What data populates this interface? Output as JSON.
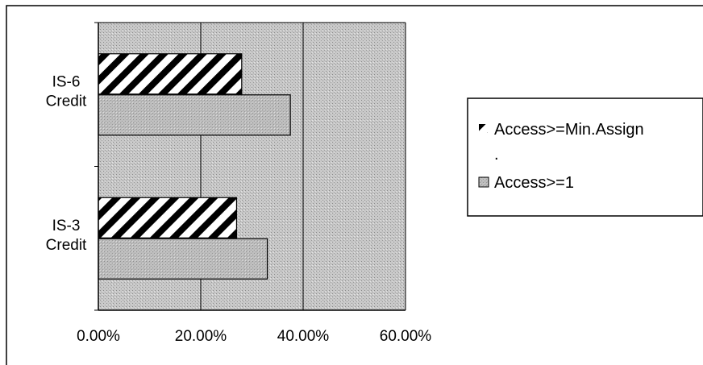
{
  "chart_data": {
    "type": "bar",
    "orientation": "horizontal",
    "categories": [
      [
        "IS-3",
        "Credit"
      ],
      [
        "IS-6",
        "Credit"
      ]
    ],
    "series": [
      {
        "name": "Access>=1",
        "values": [
          0.33,
          0.375
        ],
        "pattern": "stipple",
        "color": "#b8b8b8"
      },
      {
        "name": "Access>=Min.Assign",
        "values": [
          0.27,
          0.28
        ],
        "pattern": "diagonal-hatch",
        "color": "#000000"
      }
    ],
    "legend_entries": [
      "Access>=Min.Assign",
      ".",
      "Access>=1"
    ],
    "x_ticks": [
      "0.00%",
      "20.00%",
      "40.00%",
      "60.00%"
    ],
    "xlim": [
      0,
      0.6
    ],
    "grid": true,
    "legend_position": "right",
    "plot_background": "#c4c4c4"
  }
}
